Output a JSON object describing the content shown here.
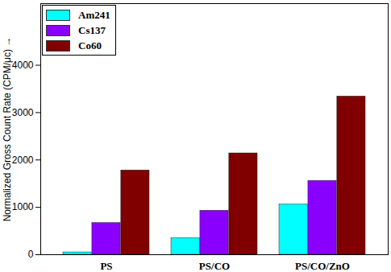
{
  "chart_data": {
    "type": "bar",
    "y_label": "Normalized Gross Count Rate (CPM/μc)",
    "categories": [
      "PS",
      "PS/CO",
      "PS/CO/ZnO"
    ],
    "series": [
      {
        "name": "Am241",
        "color": "#00ffff",
        "values": [
          50,
          350,
          1060
        ]
      },
      {
        "name": "Cs137",
        "color": "#8a00ff",
        "values": [
          670,
          930,
          1560
        ]
      },
      {
        "name": "Co60",
        "color": "#800000",
        "values": [
          1780,
          2140,
          3340
        ]
      }
    ],
    "ylim": [
      0,
      5300
    ],
    "yticks": [
      0,
      1000,
      2000,
      3000,
      4000
    ],
    "grid": false,
    "legend": "top-left"
  }
}
